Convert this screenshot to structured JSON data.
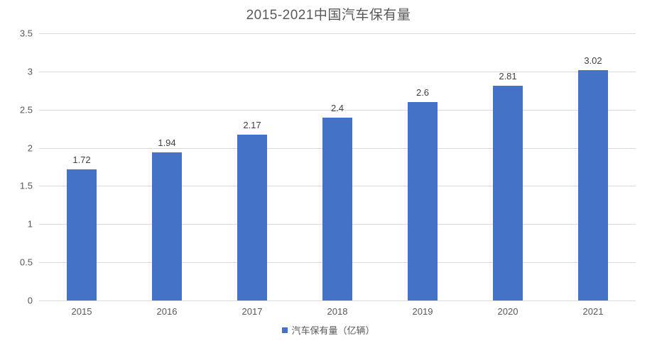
{
  "chart_data": {
    "type": "bar",
    "title": "2015-2021中国汽车保有量",
    "categories": [
      "2015",
      "2016",
      "2017",
      "2018",
      "2019",
      "2020",
      "2021"
    ],
    "values": [
      1.72,
      1.94,
      2.17,
      2.4,
      2.6,
      2.81,
      3.02
    ],
    "data_labels": [
      "1.72",
      "1.94",
      "2.17",
      "2.4",
      "2.6",
      "2.81",
      "3.02"
    ],
    "series_name": "汽车保有量（亿辆）",
    "xlabel": "",
    "ylabel": "",
    "ylim": [
      0,
      3.5
    ],
    "ytick_step": 0.5,
    "yticks": [
      "0",
      "0.5",
      "1",
      "1.5",
      "2",
      "2.5",
      "3",
      "3.5"
    ],
    "grid": true,
    "legend_position": "bottom",
    "colors": {
      "bar": "#4472C4",
      "gridline": "#D9D9D9",
      "axis_text": "#595959",
      "data_label": "#404040",
      "title_text": "#595959",
      "background": "#FFFFFF"
    }
  }
}
